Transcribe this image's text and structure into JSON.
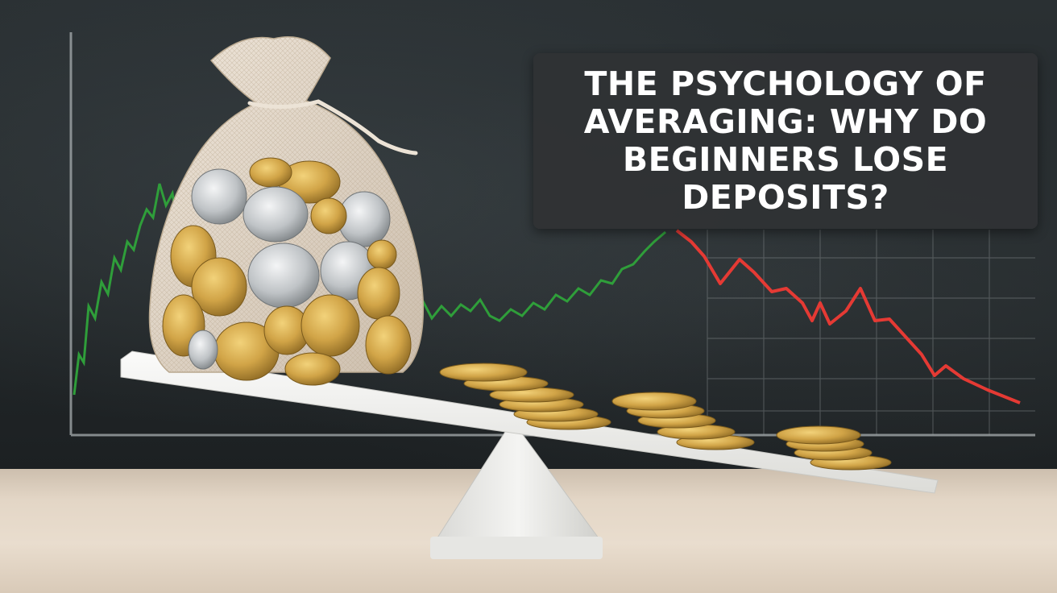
{
  "headline": {
    "text": "THE PSYCHOLOGY OF AVERAGING: WHY DO BEGINNERS LOSE DEPOSITS?"
  },
  "colors": {
    "board": "#262b2d",
    "chart_green": "#2f9e3a",
    "chart_red": "#e53a34",
    "gold_coin": "#c99a3a",
    "silver_coin": "#b9bcbe",
    "seesaw": "#f1f1ef",
    "table": "#e3d6c6"
  },
  "scene": {
    "icons": [
      "coin-bag-icon",
      "gold-coin-icon",
      "seesaw-icon",
      "rising-chart-icon",
      "falling-chart-icon"
    ]
  }
}
